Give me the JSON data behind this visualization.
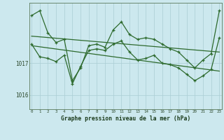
{
  "xlabel": "Graphe pression niveau de la mer (hPa)",
  "background_color": "#cce8ee",
  "grid_color": "#aacdd4",
  "line_color": "#2d6a2d",
  "spine_color": "#5a7a5a",
  "x_ticks": [
    0,
    1,
    2,
    3,
    4,
    5,
    6,
    7,
    8,
    9,
    10,
    11,
    12,
    13,
    14,
    15,
    16,
    17,
    18,
    19,
    20,
    21,
    22,
    23
  ],
  "ylim": [
    1015.55,
    1018.9
  ],
  "ytick_vals": [
    1016.0,
    1017.0
  ],
  "series1": [
    1018.5,
    1018.65,
    1017.95,
    1017.65,
    1017.75,
    1016.45,
    1016.85,
    1017.55,
    1017.6,
    1017.5,
    1018.05,
    1018.3,
    1017.9,
    1017.75,
    1017.8,
    1017.75,
    1017.6,
    1017.45,
    1017.35,
    1017.1,
    1016.85,
    1017.1,
    1017.3,
    1018.65
  ],
  "series2": [
    1017.6,
    1017.2,
    1017.15,
    1017.05,
    1017.25,
    1016.35,
    1016.9,
    1017.4,
    1017.45,
    1017.4,
    1017.6,
    1017.7,
    1017.35,
    1017.1,
    1017.15,
    1017.25,
    1017.0,
    1016.95,
    1016.85,
    1016.65,
    1016.45,
    1016.6,
    1016.8,
    1017.8
  ],
  "trend1_x": [
    0,
    23
  ],
  "trend1_y": [
    1017.85,
    1017.35
  ],
  "trend2_x": [
    0,
    23
  ],
  "trend2_y": [
    1017.55,
    1016.75
  ]
}
